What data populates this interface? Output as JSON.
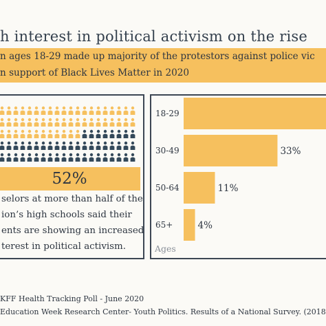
{
  "header": {
    "title": "h interest in political activism on the rise",
    "subtitle_line1": "n ages 18-29 made up majority of the protestors against police vic",
    "subtitle_line2": "n support of Black Lives Matter in 2020"
  },
  "stat": {
    "value": "52%",
    "highlight_fraction": 0.52,
    "caption_lines": [
      "selors at more than half of the",
      "ion’s high schools said their",
      "ents are showing an increased",
      "terest in political activism."
    ]
  },
  "colors": {
    "accent": "#f6c05e",
    "dark": "#34495a",
    "text": "#2d3540",
    "background": "#fbfaf6"
  },
  "icons": {
    "person": "person-icon"
  },
  "chart_data": {
    "type": "bar",
    "orientation": "horizontal",
    "categories": [
      "18-29",
      "30-49",
      "50-64",
      "65+"
    ],
    "values": [
      52,
      33,
      11,
      4
    ],
    "labels": [
      "",
      "33%",
      "11%",
      "4%"
    ],
    "title": "",
    "xlabel": "",
    "ylabel": "Ages",
    "xlim": [
      0,
      52
    ],
    "grid": false,
    "color": "#f6c05e"
  },
  "footer": {
    "source1": "KFF Health Tracking Poll - June 2020",
    "source2": "Education Week Research Center- Youth Politics. Results of a National Survey. (2018)"
  }
}
